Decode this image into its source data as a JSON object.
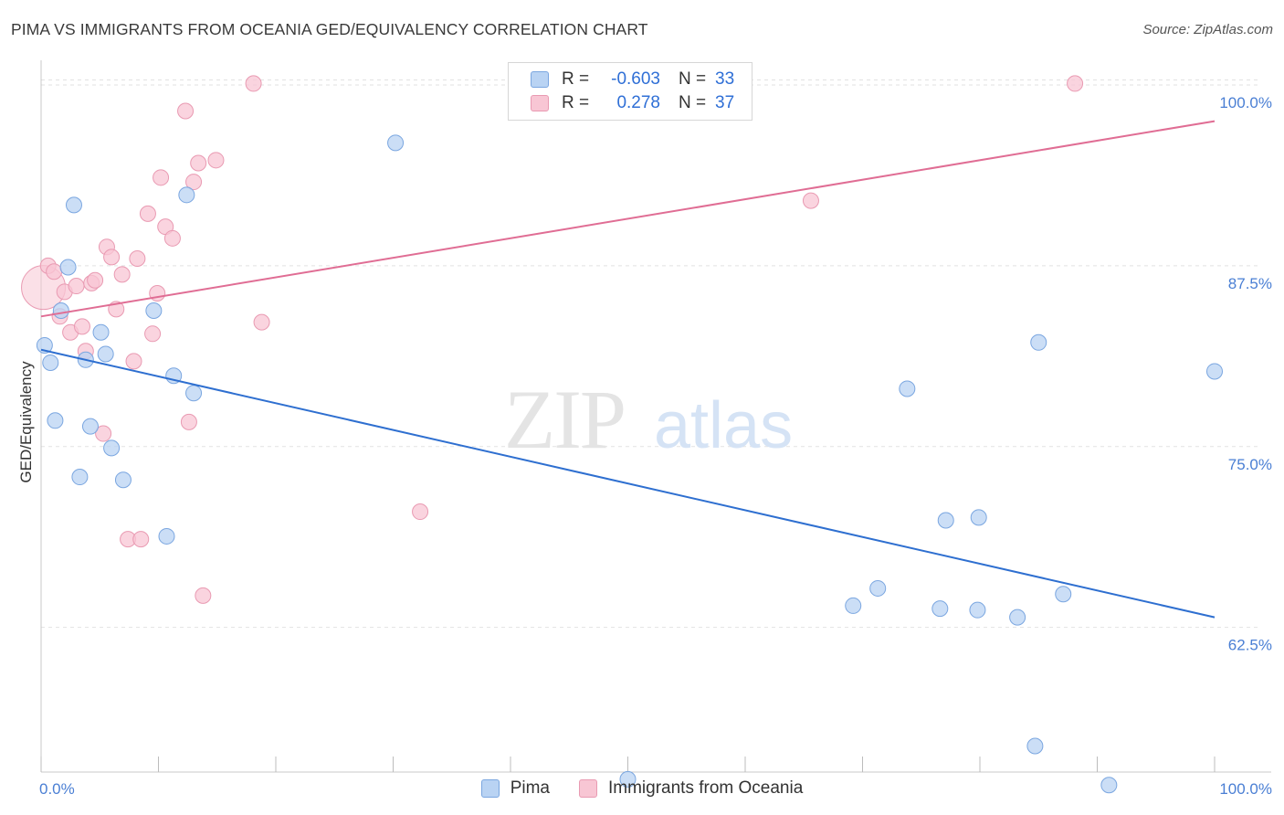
{
  "header": {
    "title": "PIMA VS IMMIGRANTS FROM OCEANIA GED/EQUIVALENCY CORRELATION CHART",
    "source": "Source: ZipAtlas.com"
  },
  "colors": {
    "pima_fill": "#b9d3f3",
    "pima_stroke": "#7aa6e0",
    "pima_line": "#2e6fd0",
    "oceania_fill": "#f8c6d4",
    "oceania_stroke": "#e99ab2",
    "oceania_line": "#e06d94",
    "axis_label": "#4a7fd4",
    "grid": "#e2e2e2"
  },
  "legend_top": {
    "rows": [
      {
        "r_label": "R =",
        "r_value": "-0.603",
        "n_label": "N =",
        "n_value": "33"
      },
      {
        "r_label": "R =",
        "r_value": "0.278",
        "n_label": "N =",
        "n_value": "37"
      }
    ]
  },
  "legend_bottom": {
    "items": [
      {
        "label": "Pima"
      },
      {
        "label": "Immigrants from Oceania"
      }
    ]
  },
  "watermark": {
    "zip": "ZIP",
    "atlas": "atlas"
  },
  "chart_data": {
    "type": "scatter",
    "title": "PIMA VS IMMIGRANTS FROM OCEANIA GED/EQUIVALENCY CORRELATION CHART",
    "xlabel": "",
    "ylabel": "GED/Equivalency",
    "xlim": [
      0,
      100
    ],
    "ylim": [
      52.5,
      101.2
    ],
    "x_tick_labels": [
      "0.0%",
      "100.0%"
    ],
    "y_ticks": [
      62.5,
      75.0,
      87.5,
      100.0
    ],
    "y_tick_labels": [
      "62.5%",
      "75.0%",
      "87.5%",
      "100.0%"
    ],
    "grid": true,
    "legend_placement": "top-center",
    "series": [
      {
        "name": "Pima",
        "R": -0.603,
        "N": 33,
        "trend": {
          "x": [
            0,
            100
          ],
          "y": [
            81.7,
            63.2
          ]
        },
        "points": [
          {
            "x": 0.3,
            "y": 82.0
          },
          {
            "x": 0.8,
            "y": 80.8
          },
          {
            "x": 1.2,
            "y": 76.8
          },
          {
            "x": 1.7,
            "y": 84.4
          },
          {
            "x": 2.3,
            "y": 87.4
          },
          {
            "x": 2.8,
            "y": 91.7
          },
          {
            "x": 3.3,
            "y": 72.9
          },
          {
            "x": 3.8,
            "y": 81.0
          },
          {
            "x": 4.2,
            "y": 76.4
          },
          {
            "x": 5.1,
            "y": 82.9
          },
          {
            "x": 5.5,
            "y": 81.4
          },
          {
            "x": 6.0,
            "y": 74.9
          },
          {
            "x": 7.0,
            "y": 72.7
          },
          {
            "x": 9.6,
            "y": 84.4
          },
          {
            "x": 10.7,
            "y": 68.8
          },
          {
            "x": 11.3,
            "y": 79.9
          },
          {
            "x": 12.4,
            "y": 92.4
          },
          {
            "x": 13.0,
            "y": 78.7
          },
          {
            "x": 30.2,
            "y": 96.0
          },
          {
            "x": 50.0,
            "y": 52.0
          },
          {
            "x": 69.2,
            "y": 64.0
          },
          {
            "x": 71.3,
            "y": 65.2
          },
          {
            "x": 73.8,
            "y": 79.0
          },
          {
            "x": 76.6,
            "y": 63.8
          },
          {
            "x": 77.1,
            "y": 69.9
          },
          {
            "x": 79.8,
            "y": 63.7
          },
          {
            "x": 79.9,
            "y": 70.1
          },
          {
            "x": 83.2,
            "y": 63.2
          },
          {
            "x": 84.7,
            "y": 54.3
          },
          {
            "x": 85.0,
            "y": 82.2
          },
          {
            "x": 87.1,
            "y": 64.8
          },
          {
            "x": 91.0,
            "y": 51.6
          },
          {
            "x": 100.0,
            "y": 80.2
          }
        ]
      },
      {
        "name": "Immigrants from Oceania",
        "R": 0.278,
        "N": 37,
        "trend": {
          "x": [
            0,
            100
          ],
          "y": [
            84.0,
            97.5
          ]
        },
        "points": [
          {
            "x": 0.2,
            "y": 86.0,
            "big": true
          },
          {
            "x": 0.6,
            "y": 87.5
          },
          {
            "x": 1.1,
            "y": 87.1
          },
          {
            "x": 1.6,
            "y": 84.0
          },
          {
            "x": 2.0,
            "y": 85.7
          },
          {
            "x": 2.5,
            "y": 82.9
          },
          {
            "x": 3.0,
            "y": 86.1
          },
          {
            "x": 3.5,
            "y": 83.3
          },
          {
            "x": 3.8,
            "y": 81.6
          },
          {
            "x": 4.3,
            "y": 86.3
          },
          {
            "x": 4.6,
            "y": 86.5
          },
          {
            "x": 5.3,
            "y": 75.9
          },
          {
            "x": 5.6,
            "y": 88.8
          },
          {
            "x": 6.0,
            "y": 88.1
          },
          {
            "x": 6.4,
            "y": 84.5
          },
          {
            "x": 6.9,
            "y": 86.9
          },
          {
            "x": 7.4,
            "y": 68.6
          },
          {
            "x": 7.9,
            "y": 80.9
          },
          {
            "x": 8.2,
            "y": 88.0
          },
          {
            "x": 8.5,
            "y": 68.6
          },
          {
            "x": 9.1,
            "y": 91.1
          },
          {
            "x": 9.5,
            "y": 82.8
          },
          {
            "x": 9.9,
            "y": 85.6
          },
          {
            "x": 10.2,
            "y": 93.6
          },
          {
            "x": 10.6,
            "y": 90.2
          },
          {
            "x": 11.2,
            "y": 89.4
          },
          {
            "x": 12.3,
            "y": 98.2
          },
          {
            "x": 12.6,
            "y": 76.7
          },
          {
            "x": 13.0,
            "y": 93.3
          },
          {
            "x": 13.4,
            "y": 94.6
          },
          {
            "x": 13.8,
            "y": 64.7
          },
          {
            "x": 14.9,
            "y": 94.8
          },
          {
            "x": 18.1,
            "y": 100.1
          },
          {
            "x": 18.8,
            "y": 83.6
          },
          {
            "x": 32.3,
            "y": 70.5
          },
          {
            "x": 65.6,
            "y": 92.0
          },
          {
            "x": 88.1,
            "y": 100.1
          }
        ]
      }
    ]
  }
}
